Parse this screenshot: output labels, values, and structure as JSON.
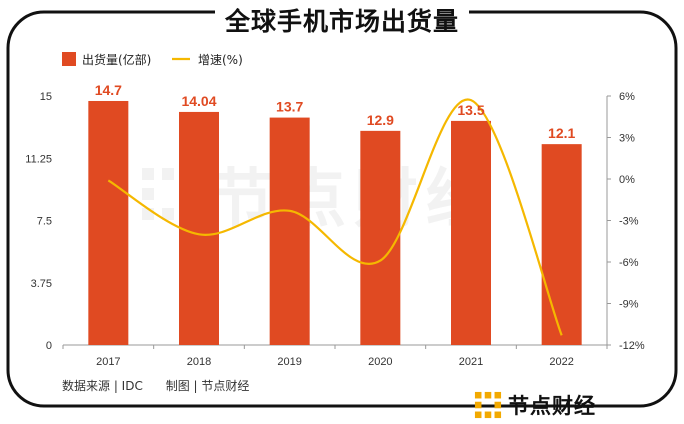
{
  "title": "全球手机市场出货量",
  "source_note": "数据来源 | IDC      制图 | 节点财经",
  "brand": {
    "name": "节点财经",
    "icon": "node-finance-logo-icon"
  },
  "colors": {
    "bar": "#e04a22",
    "line": "#f5b800",
    "frame": "#111111",
    "logo": "#f2a900"
  },
  "chart_data": {
    "type": "bar",
    "categories": [
      "2017",
      "2018",
      "2019",
      "2020",
      "2021",
      "2022"
    ],
    "series": [
      {
        "name": "出货量(亿部)",
        "type": "bar",
        "axis": "left",
        "values": [
          14.7,
          14.04,
          13.7,
          12.9,
          13.5,
          12.1
        ],
        "labels": [
          "14.7",
          "14.04",
          "13.7",
          "12.9",
          "13.5",
          "12.1"
        ]
      },
      {
        "name": "增速(%)",
        "type": "line",
        "axis": "right",
        "smooth": true,
        "values": [
          -0.1,
          -4.0,
          -2.3,
          -5.9,
          5.7,
          -11.3
        ]
      }
    ],
    "y_left": {
      "ticks": [
        "0",
        "3.75",
        "7.5",
        "11.25",
        "15"
      ],
      "ylim": [
        0,
        15
      ]
    },
    "y_right": {
      "ticks": [
        "-12%",
        "-9%",
        "-6%",
        "-3%",
        "0%",
        "3%",
        "6%"
      ],
      "ylim": [
        -12,
        6
      ]
    },
    "legend_position": "top-left",
    "grid": false
  }
}
